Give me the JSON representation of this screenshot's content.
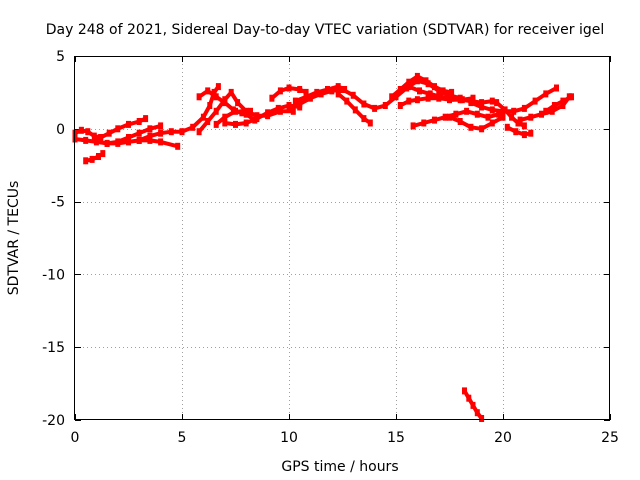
{
  "chart_data": {
    "type": "scatter",
    "title": "Day 248 of 2021, Sidereal Day-to-day VTEC variation (SDTVAR) for receiver igel",
    "xlabel": "GPS time / hours",
    "ylabel": "SDTVAR / TECUs",
    "xlim": [
      0,
      25
    ],
    "ylim": [
      -20,
      5
    ],
    "xticks": [
      0,
      5,
      10,
      15,
      20,
      25
    ],
    "yticks": [
      -20,
      -15,
      -10,
      -5,
      0,
      5
    ],
    "xtick_labels": [
      "0",
      "5",
      "10",
      "15",
      "20",
      "25"
    ],
    "ytick_labels": [
      "-20",
      "-15",
      "-10",
      "-5",
      "0",
      "5"
    ],
    "grid": true,
    "series": [
      {
        "name": "track-1",
        "points": [
          [
            0.0,
            -0.7
          ],
          [
            0.5,
            -0.8
          ],
          [
            1.0,
            -0.9
          ],
          [
            1.5,
            -1.0
          ],
          [
            2.0,
            -1.0
          ],
          [
            2.5,
            -0.9
          ],
          [
            3.0,
            -0.8
          ],
          [
            3.5,
            -0.8
          ],
          [
            4.0,
            -0.9
          ],
          [
            4.8,
            -1.2
          ]
        ]
      },
      {
        "name": "track-2",
        "points": [
          [
            0.0,
            -0.3
          ],
          [
            0.3,
            -0.1
          ],
          [
            0.6,
            -0.2
          ],
          [
            0.9,
            -0.5
          ],
          [
            1.2,
            -0.6
          ]
        ]
      },
      {
        "name": "track-3",
        "points": [
          [
            0.5,
            -2.2
          ],
          [
            0.8,
            -2.1
          ],
          [
            1.1,
            -1.9
          ],
          [
            1.3,
            -1.7
          ]
        ]
      },
      {
        "name": "track-4",
        "points": [
          [
            1.2,
            -0.6
          ],
          [
            1.6,
            -0.3
          ],
          [
            2.0,
            0.0
          ],
          [
            2.5,
            0.3
          ],
          [
            3.0,
            0.5
          ],
          [
            3.3,
            0.7
          ]
        ]
      },
      {
        "name": "track-5",
        "points": [
          [
            1.5,
            -1.0
          ],
          [
            2.0,
            -0.9
          ],
          [
            2.5,
            -0.6
          ],
          [
            3.0,
            -0.3
          ],
          [
            3.5,
            0.0
          ],
          [
            4.0,
            0.2
          ]
        ]
      },
      {
        "name": "track-6",
        "points": [
          [
            3.0,
            -0.8
          ],
          [
            3.5,
            -0.5
          ],
          [
            4.0,
            -0.3
          ],
          [
            4.5,
            -0.2
          ],
          [
            5.0,
            -0.2
          ],
          [
            5.5,
            0.1
          ],
          [
            6.0,
            0.8
          ],
          [
            6.3,
            1.6
          ],
          [
            6.5,
            2.5
          ],
          [
            6.7,
            2.9
          ]
        ]
      },
      {
        "name": "track-7",
        "points": [
          [
            5.8,
            -0.2
          ],
          [
            6.2,
            0.5
          ],
          [
            6.6,
            1.2
          ],
          [
            7.0,
            2.0
          ],
          [
            7.3,
            2.5
          ],
          [
            7.6,
            1.8
          ],
          [
            8.0,
            1.2
          ],
          [
            8.5,
            0.9
          ],
          [
            9.0,
            0.9
          ],
          [
            9.6,
            1.2
          ],
          [
            10.2,
            1.2
          ]
        ]
      },
      {
        "name": "track-8",
        "points": [
          [
            5.8,
            2.2
          ],
          [
            6.2,
            2.6
          ],
          [
            6.6,
            2.2
          ],
          [
            7.0,
            1.8
          ],
          [
            7.4,
            1.3
          ],
          [
            7.8,
            1.1
          ],
          [
            8.2,
            1.2
          ]
        ]
      },
      {
        "name": "track-9",
        "points": [
          [
            6.6,
            0.3
          ],
          [
            7.0,
            0.8
          ],
          [
            7.5,
            1.2
          ],
          [
            8.0,
            1.0
          ],
          [
            8.4,
            0.6
          ]
        ]
      },
      {
        "name": "track-10",
        "points": [
          [
            7.0,
            0.4
          ],
          [
            7.5,
            0.3
          ],
          [
            8.0,
            0.4
          ],
          [
            8.5,
            0.7
          ],
          [
            9.0,
            1.1
          ],
          [
            9.5,
            1.4
          ],
          [
            10.0,
            1.6
          ],
          [
            10.5,
            1.5
          ]
        ]
      },
      {
        "name": "track-11",
        "points": [
          [
            9.2,
            2.1
          ],
          [
            9.6,
            2.6
          ],
          [
            10.0,
            2.8
          ],
          [
            10.5,
            2.7
          ],
          [
            10.8,
            2.5
          ]
        ]
      },
      {
        "name": "track-12",
        "points": [
          [
            10.0,
            1.4
          ],
          [
            10.5,
            1.7
          ],
          [
            11.0,
            2.1
          ],
          [
            11.5,
            2.4
          ],
          [
            12.0,
            2.6
          ],
          [
            12.5,
            2.7
          ],
          [
            13.0,
            2.3
          ],
          [
            13.5,
            1.7
          ],
          [
            14.0,
            1.4
          ],
          [
            14.5,
            1.6
          ],
          [
            15.0,
            2.2
          ],
          [
            15.5,
            2.8
          ],
          [
            16.0,
            3.3
          ],
          [
            16.5,
            3.1
          ],
          [
            17.0,
            2.6
          ],
          [
            17.5,
            2.3
          ],
          [
            18.0,
            2.1
          ]
        ]
      },
      {
        "name": "track-13",
        "points": [
          [
            10.3,
            1.9
          ],
          [
            10.8,
            2.2
          ],
          [
            11.3,
            2.5
          ],
          [
            11.8,
            2.7
          ],
          [
            12.3,
            2.9
          ],
          [
            12.6,
            2.7
          ]
        ]
      },
      {
        "name": "track-14",
        "points": [
          [
            12.3,
            2.4
          ],
          [
            12.7,
            1.9
          ],
          [
            13.1,
            1.3
          ],
          [
            13.5,
            0.7
          ],
          [
            13.8,
            0.4
          ]
        ]
      },
      {
        "name": "track-15",
        "points": [
          [
            14.8,
            2.2
          ],
          [
            15.2,
            2.7
          ],
          [
            15.6,
            3.2
          ],
          [
            16.0,
            3.6
          ],
          [
            16.4,
            3.3
          ],
          [
            16.8,
            2.9
          ],
          [
            17.2,
            2.6
          ],
          [
            17.6,
            2.5
          ]
        ]
      },
      {
        "name": "track-16",
        "points": [
          [
            15.2,
            1.6
          ],
          [
            15.6,
            1.9
          ],
          [
            16.0,
            2.0
          ],
          [
            16.5,
            2.1
          ],
          [
            17.0,
            2.1
          ],
          [
            17.5,
            2.0
          ],
          [
            18.0,
            2.0
          ],
          [
            18.5,
            1.9
          ],
          [
            19.0,
            1.8
          ],
          [
            19.5,
            1.9
          ]
        ]
      },
      {
        "name": "track-17",
        "points": [
          [
            15.6,
            2.9
          ],
          [
            16.1,
            2.6
          ],
          [
            16.6,
            2.4
          ],
          [
            17.1,
            2.2
          ],
          [
            17.6,
            2.1
          ],
          [
            18.1,
            2.0
          ],
          [
            18.6,
            2.1
          ]
        ]
      },
      {
        "name": "track-18",
        "points": [
          [
            15.8,
            0.2
          ],
          [
            16.3,
            0.4
          ],
          [
            16.8,
            0.6
          ],
          [
            17.3,
            0.8
          ],
          [
            17.8,
            1.0
          ],
          [
            18.3,
            1.2
          ],
          [
            18.8,
            1.0
          ],
          [
            19.3,
            0.8
          ],
          [
            19.8,
            1.0
          ]
        ]
      },
      {
        "name": "track-19",
        "points": [
          [
            17.5,
            0.8
          ],
          [
            18.0,
            0.5
          ],
          [
            18.5,
            0.1
          ],
          [
            19.0,
            0.0
          ],
          [
            19.5,
            0.4
          ],
          [
            20.0,
            0.8
          ]
        ]
      },
      {
        "name": "track-20",
        "points": [
          [
            18.5,
            1.8
          ],
          [
            19.0,
            1.5
          ],
          [
            19.5,
            1.3
          ],
          [
            20.0,
            1.2
          ],
          [
            20.5,
            1.2
          ],
          [
            21.0,
            1.4
          ],
          [
            21.5,
            1.9
          ],
          [
            22.0,
            2.4
          ],
          [
            22.5,
            2.8
          ]
        ]
      },
      {
        "name": "track-21",
        "points": [
          [
            19.7,
            1.8
          ],
          [
            20.1,
            1.3
          ],
          [
            20.4,
            0.8
          ],
          [
            20.7,
            0.4
          ],
          [
            21.0,
            0.2
          ]
        ]
      },
      {
        "name": "track-22",
        "points": [
          [
            20.2,
            0.1
          ],
          [
            20.6,
            -0.2
          ],
          [
            21.0,
            -0.4
          ],
          [
            21.3,
            -0.3
          ]
        ]
      },
      {
        "name": "track-23",
        "points": [
          [
            20.8,
            0.6
          ],
          [
            21.3,
            0.8
          ],
          [
            21.8,
            1.0
          ],
          [
            22.3,
            1.2
          ],
          [
            22.8,
            1.6
          ],
          [
            23.1,
            2.2
          ]
        ]
      },
      {
        "name": "track-24",
        "points": [
          [
            22.0,
            1.2
          ],
          [
            22.4,
            1.6
          ],
          [
            22.8,
            1.9
          ],
          [
            23.2,
            2.2
          ]
        ]
      },
      {
        "name": "track-25",
        "points": [
          [
            18.2,
            -18.0
          ],
          [
            18.4,
            -18.5
          ],
          [
            18.6,
            -19.0
          ],
          [
            18.8,
            -19.5
          ],
          [
            19.0,
            -19.9
          ]
        ]
      }
    ]
  }
}
